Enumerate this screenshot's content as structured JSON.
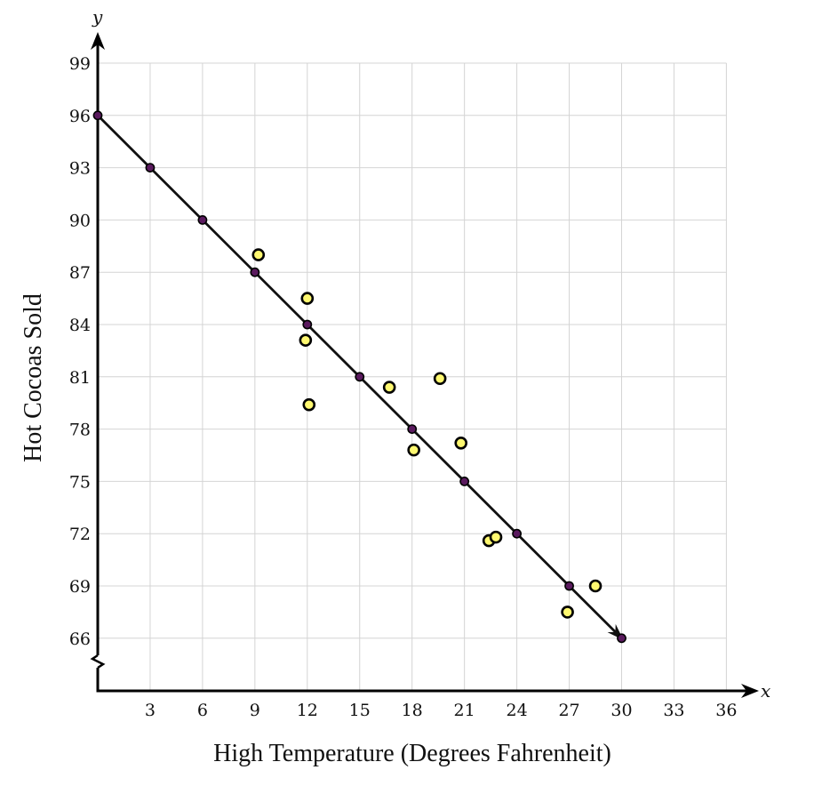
{
  "chart_data": {
    "type": "scatter",
    "xlabel": "High Temperature (Degrees Fahrenheit)",
    "ylabel": "Hot Cocoas Sold",
    "x_var": "x",
    "y_var": "y",
    "xlim": [
      0,
      36
    ],
    "ylim": [
      63,
      100
    ],
    "x_ticks": [
      3,
      6,
      9,
      12,
      15,
      18,
      21,
      24,
      27,
      30,
      33,
      36
    ],
    "x_tick_labels": [
      "3",
      "6",
      "9",
      "12",
      "15",
      "18",
      "21",
      "24",
      "27",
      "30",
      "33",
      "36"
    ],
    "y_ticks": [
      66,
      69,
      72,
      75,
      78,
      81,
      84,
      87,
      90,
      93,
      96,
      99
    ],
    "y_tick_labels": [
      "66",
      "69",
      "72",
      "75",
      "78",
      "81",
      "84",
      "87",
      "90",
      "93",
      "96",
      "99"
    ],
    "y_axis_break": true,
    "grid": true,
    "trend_line": {
      "start": [
        0,
        96
      ],
      "end": [
        30,
        66
      ],
      "color": "#111111",
      "arrow_end": true
    },
    "line_points": {
      "color": "#5a1a5e",
      "x": [
        0,
        3,
        6,
        9,
        12,
        15,
        18,
        21,
        24,
        27,
        30
      ],
      "y": [
        96,
        93,
        90,
        87,
        84,
        81,
        78,
        75,
        72,
        69,
        66
      ]
    },
    "data_points": {
      "color": "#fff870",
      "x": [
        9.2,
        12.0,
        11.9,
        12.1,
        16.7,
        19.6,
        18.1,
        20.8,
        22.4,
        22.8,
        26.9,
        28.5
      ],
      "y": [
        88.0,
        85.5,
        83.1,
        79.4,
        80.4,
        80.9,
        76.8,
        77.2,
        71.6,
        71.8,
        67.5,
        69.0
      ]
    }
  }
}
